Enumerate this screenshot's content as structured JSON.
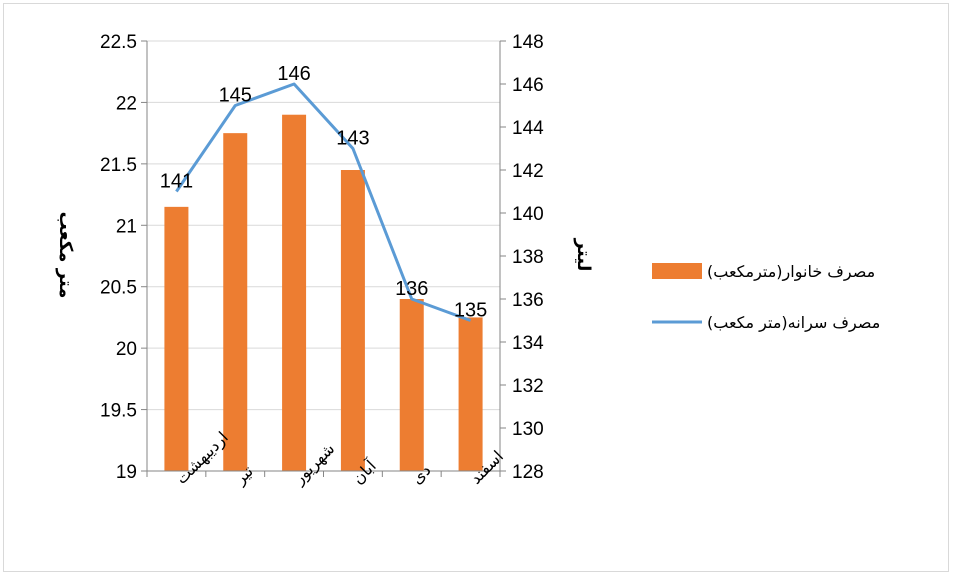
{
  "chart_data": {
    "type": "bar",
    "categories": [
      "اردیبهشت",
      "تیر",
      "شهریور",
      "آبان",
      "دی",
      "اسفند"
    ],
    "series": [
      {
        "name": "مصرف خانوار(مترمکعب)",
        "type": "bar",
        "axis": "left",
        "color": "#ED7D31",
        "values": [
          21.15,
          21.75,
          21.9,
          21.45,
          20.4,
          20.25
        ]
      },
      {
        "name": "مصرف سرانه(متر مکعب)",
        "type": "line",
        "axis": "right",
        "color": "#5B9BD5",
        "values": [
          141,
          145,
          146,
          143,
          136,
          135
        ],
        "data_labels": [
          "141",
          "145",
          "146",
          "143",
          "136",
          "135"
        ]
      }
    ],
    "y_left": {
      "label": "متر مکعب",
      "ylim": [
        19,
        22.5
      ],
      "ticks": [
        "19",
        "19.5",
        "20",
        "20.5",
        "21",
        "21.5",
        "22",
        "22.5"
      ],
      "tick_values": [
        19,
        19.5,
        20,
        20.5,
        21,
        21.5,
        22,
        22.5
      ]
    },
    "y_right": {
      "label": "لیتر",
      "ylim": [
        128,
        148
      ],
      "ticks": [
        "128",
        "130",
        "132",
        "134",
        "136",
        "138",
        "140",
        "142",
        "144",
        "146",
        "148"
      ],
      "tick_values": [
        128,
        130,
        132,
        134,
        136,
        138,
        140,
        142,
        144,
        146,
        148
      ]
    },
    "grid": "horizontal",
    "legend_position": "right"
  }
}
